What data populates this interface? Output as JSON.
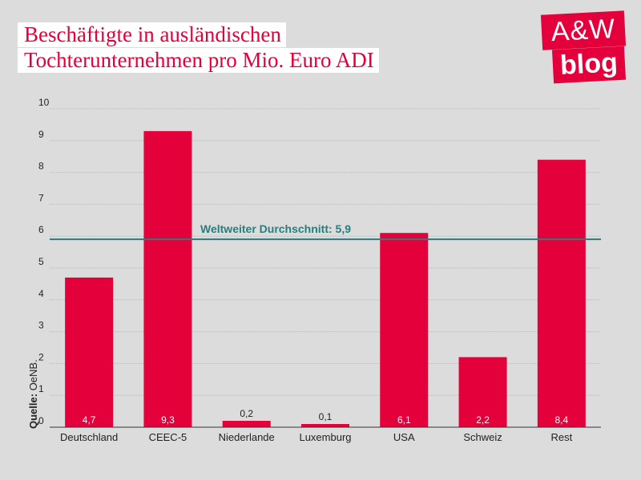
{
  "title": {
    "line1": "Beschäftigte in ausländischen",
    "line2": "Tochterunternehmen pro Mio. Euro ADI"
  },
  "logo": {
    "top": "A&W",
    "bottom": "blog"
  },
  "source": {
    "label": "Quelle:",
    "text": " OeNB."
  },
  "colors": {
    "bar": "#e4003a",
    "average_line": "#2a7d7a",
    "grid": "#b8b8b8",
    "axis": "#333333"
  },
  "chart_data": {
    "type": "bar",
    "title": "Beschäftigte in ausländischen Tochterunternehmen pro Mio. Euro ADI",
    "categories": [
      "Deutschland",
      "CEEC-5",
      "Niederlande",
      "Luxemburg",
      "USA",
      "Schweiz",
      "Rest"
    ],
    "values": [
      4.7,
      9.3,
      0.2,
      0.1,
      6.1,
      2.2,
      8.4
    ],
    "value_labels": [
      "4,7",
      "9,3",
      "0,2",
      "0,1",
      "6,1",
      "2,2",
      "8,4"
    ],
    "ylim": [
      0,
      10
    ],
    "yticks": [
      0,
      1,
      2,
      3,
      4,
      5,
      6,
      7,
      8,
      9,
      10
    ],
    "grid": true,
    "reference_line": {
      "label": "Weltweiter Durchschnitt: 5,9",
      "value": 5.9
    }
  }
}
